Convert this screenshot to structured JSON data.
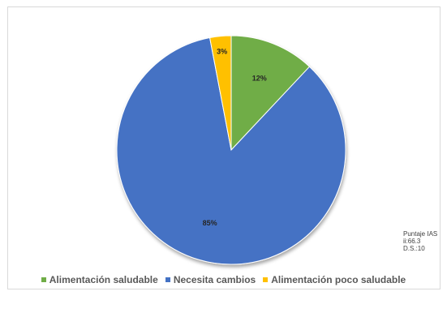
{
  "chart_data": {
    "type": "pie",
    "title": "",
    "categories": [
      "Alimentación saludable",
      "Necesita cambios",
      "Alimentación poco saludable"
    ],
    "values": [
      12,
      85,
      3
    ],
    "data_labels": [
      "12%",
      "85%",
      "3%"
    ],
    "colors": [
      "#70ad47",
      "#4472c4",
      "#ffc000"
    ],
    "legend": "bottom",
    "start_angle_deg": 0,
    "direction": "clockwise"
  },
  "annotation": {
    "line1": "Puntaje IAS",
    "line2": "ii:66.3",
    "line3": "D.S.:10"
  }
}
